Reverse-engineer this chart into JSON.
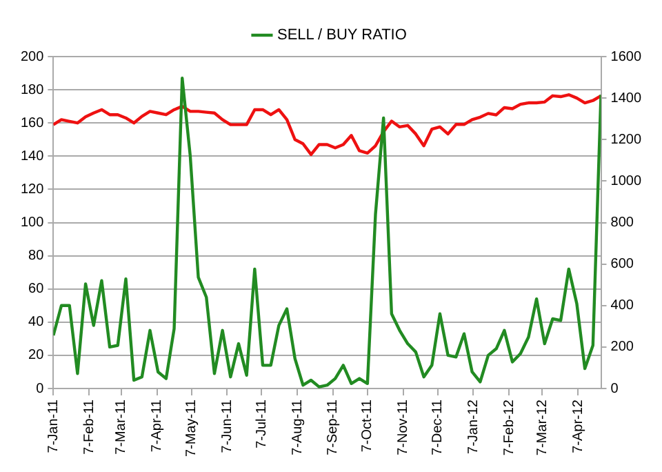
{
  "chart_data": {
    "type": "line",
    "x": [
      "2011-01-07",
      "2011-01-14",
      "2011-01-21",
      "2011-01-28",
      "2011-02-04",
      "2011-02-11",
      "2011-02-18",
      "2011-02-25",
      "2011-03-04",
      "2011-03-11",
      "2011-03-18",
      "2011-03-25",
      "2011-04-01",
      "2011-04-08",
      "2011-04-15",
      "2011-04-22",
      "2011-04-29",
      "2011-05-06",
      "2011-05-13",
      "2011-05-20",
      "2011-05-27",
      "2011-06-03",
      "2011-06-10",
      "2011-06-17",
      "2011-06-24",
      "2011-07-01",
      "2011-07-08",
      "2011-07-15",
      "2011-07-22",
      "2011-07-29",
      "2011-08-05",
      "2011-08-12",
      "2011-08-19",
      "2011-08-26",
      "2011-09-02",
      "2011-09-09",
      "2011-09-16",
      "2011-09-23",
      "2011-09-30",
      "2011-10-07",
      "2011-10-14",
      "2011-10-21",
      "2011-10-28",
      "2011-11-04",
      "2011-11-11",
      "2011-11-18",
      "2011-11-25",
      "2011-12-02",
      "2011-12-09",
      "2011-12-16",
      "2011-12-23",
      "2011-12-30",
      "2012-01-06",
      "2012-01-13",
      "2012-01-20",
      "2012-01-27",
      "2012-02-03",
      "2012-02-10",
      "2012-02-17",
      "2012-02-24",
      "2012-03-02",
      "2012-03-09",
      "2012-03-16",
      "2012-03-23",
      "2012-03-30",
      "2012-04-06",
      "2012-04-13",
      "2012-04-20",
      "2012-04-27"
    ],
    "series": [
      {
        "name": "SELL / BUY RATIO",
        "color": "#228b22",
        "values": [
          32,
          50,
          50,
          9,
          63,
          38,
          65,
          25,
          26,
          66,
          5,
          7,
          35,
          10,
          6,
          36,
          187,
          140,
          67,
          55,
          9,
          35,
          7,
          27,
          8,
          72,
          14,
          14,
          38,
          48,
          18,
          2,
          5,
          1,
          2,
          6,
          14,
          3,
          6,
          3,
          105,
          163,
          45,
          35,
          27,
          22,
          7,
          14,
          45,
          20,
          19,
          33,
          10,
          4,
          20,
          24,
          35,
          16,
          21,
          31,
          54,
          27,
          42,
          41,
          72,
          51,
          12,
          26,
          177
        ]
      },
      {
        "color": "#ee1111",
        "axis": "y2",
        "values": [
          1272,
          1296,
          1288,
          1280,
          1310,
          1328,
          1344,
          1320,
          1320,
          1304,
          1280,
          1312,
          1336,
          1328,
          1320,
          1344,
          1360,
          1336,
          1336,
          1332,
          1328,
          1296,
          1272,
          1272,
          1272,
          1344,
          1344,
          1320,
          1344,
          1296,
          1200,
          1180,
          1128,
          1176,
          1176,
          1160,
          1176,
          1220,
          1146,
          1135,
          1170,
          1238,
          1289,
          1261,
          1268,
          1227,
          1170,
          1250,
          1261,
          1227,
          1273,
          1273,
          1296,
          1308,
          1326,
          1319,
          1354,
          1349,
          1370,
          1377,
          1377,
          1381,
          1411,
          1407,
          1416,
          1400,
          1377,
          1388,
          1411
        ]
      }
    ],
    "xlim": [
      "2011-01-07",
      "2012-04-27"
    ],
    "xticks": [
      {
        "value": "2011-01-07",
        "label": "7-Jan-11"
      },
      {
        "value": "2011-02-07",
        "label": "7-Feb-11"
      },
      {
        "value": "2011-03-07",
        "label": "7-Mar-11"
      },
      {
        "value": "2011-04-07",
        "label": "7-Apr-11"
      },
      {
        "value": "2011-05-07",
        "label": "7-May-11"
      },
      {
        "value": "2011-06-07",
        "label": "7-Jun-11"
      },
      {
        "value": "2011-07-07",
        "label": "7-Jul-11"
      },
      {
        "value": "2011-08-07",
        "label": "7-Aug-11"
      },
      {
        "value": "2011-09-07",
        "label": "7-Sep-11"
      },
      {
        "value": "2011-10-07",
        "label": "7-Oct-11"
      },
      {
        "value": "2011-11-07",
        "label": "7-Nov-11"
      },
      {
        "value": "2011-12-07",
        "label": "7-Dec-11"
      },
      {
        "value": "2012-01-07",
        "label": "7-Jan-12"
      },
      {
        "value": "2012-02-07",
        "label": "7-Feb-12"
      },
      {
        "value": "2012-03-07",
        "label": "7-Mar-12"
      },
      {
        "value": "2012-04-07",
        "label": "7-Apr-12"
      }
    ],
    "ylim": [
      0,
      200
    ],
    "yticks": [
      0,
      20,
      40,
      60,
      80,
      100,
      120,
      140,
      160,
      180,
      200
    ],
    "y2lim": [
      0,
      1600
    ],
    "y2ticks": [
      0,
      200,
      400,
      600,
      800,
      1000,
      1200,
      1400,
      1600
    ],
    "grid": "y",
    "legend": "top",
    "marker": "none",
    "line_style": "solid"
  }
}
